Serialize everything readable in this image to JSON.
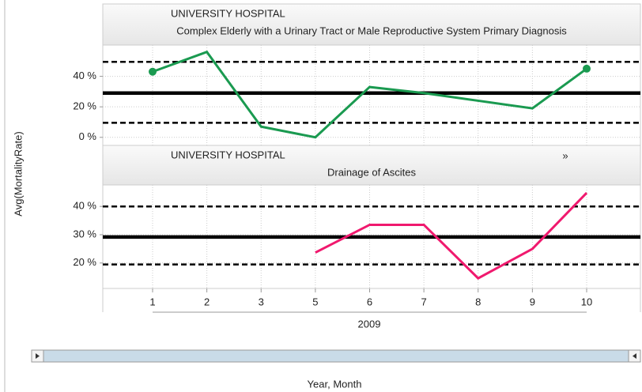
{
  "y_axis_label": "Avg(MortalityRate)",
  "x_axis": {
    "categories": [
      "1",
      "2",
      "3",
      "5",
      "6",
      "7",
      "8",
      "9",
      "10"
    ],
    "group": "2009",
    "label": "Year,  Month"
  },
  "chart_data": [
    {
      "type": "line",
      "title": "UNIVERSITY HOSPITAL",
      "subtitle": "Complex Elderly with a Urinary Tract or Male Reproductive System Primary Diagnosis",
      "values": [
        43,
        56,
        7,
        0,
        33,
        29,
        24,
        19,
        45
      ],
      "color": "#1a9a50",
      "endpoint_markers": true,
      "ylim": [
        -5.3,
        60.5
      ],
      "yticks": [
        {
          "value": 0,
          "label": "0 %"
        },
        {
          "value": 20,
          "label": "20 %"
        },
        {
          "value": 40,
          "label": "40 %"
        }
      ],
      "reference_lines": [
        {
          "value": 49.5,
          "style": "dashed"
        },
        {
          "value": 29,
          "style": "solid"
        },
        {
          "value": 9.5,
          "style": "dashed"
        }
      ],
      "grid": true
    },
    {
      "type": "line",
      "title": "UNIVERSITY HOSPITAL",
      "expand_icon": "»",
      "subtitle": "Drainage of Ascites",
      "values": [
        null,
        null,
        null,
        23.7,
        33.5,
        33.5,
        14.6,
        25,
        44.8
      ],
      "color": "#f0196e",
      "endpoint_markers": false,
      "ylim": [
        11,
        47.6
      ],
      "yticks": [
        {
          "value": 20,
          "label": "20 %"
        },
        {
          "value": 30,
          "label": "30 %"
        },
        {
          "value": 40,
          "label": "40 %"
        }
      ],
      "reference_lines": [
        {
          "value": 40,
          "style": "dashed"
        },
        {
          "value": 29.2,
          "style": "solid"
        },
        {
          "value": 19.5,
          "style": "dashed"
        }
      ],
      "grid": true
    }
  ]
}
